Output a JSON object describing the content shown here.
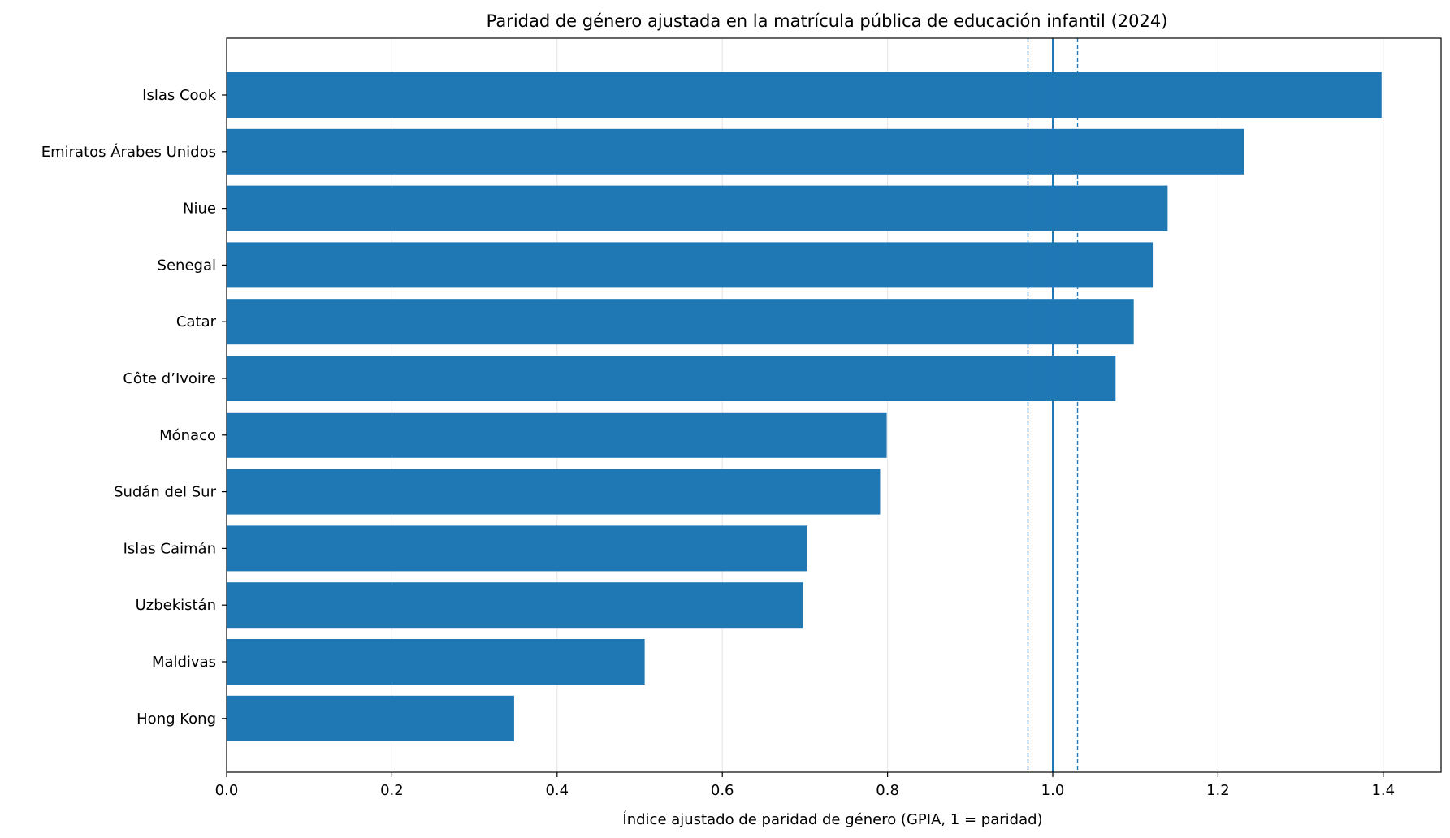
{
  "chart_data": {
    "type": "bar",
    "orientation": "horizontal",
    "title": "Paridad de género ajustada en la matrícula pública de educación infantil (2024)",
    "xlabel": "Índice ajustado de paridad de género (GPIA, 1 = paridad)",
    "ylabel": "",
    "xlim": [
      0,
      1.47
    ],
    "xticks": [
      0,
      0.2,
      0.4,
      0.6,
      0.8,
      1.0,
      1.2,
      1.4
    ],
    "xtick_labels": [
      "0.0",
      "0.2",
      "0.4",
      "0.6",
      "0.8",
      "1.0",
      "1.2",
      "1.4"
    ],
    "grid": "vertical",
    "categories": [
      "Islas Cook",
      "Emiratos Árabes Unidos",
      "Niue",
      "Senegal",
      "Catar",
      "Côte d’Ivoire",
      "Mónaco",
      "Sudán del Sur",
      "Islas Caimán",
      "Uzbekistán",
      "Maldivas",
      "Hong Kong"
    ],
    "values": [
      1.398,
      1.232,
      1.139,
      1.121,
      1.098,
      1.076,
      0.799,
      0.791,
      0.703,
      0.698,
      0.506,
      0.348
    ],
    "reference_lines": [
      {
        "value": 1.0,
        "style": "solid"
      },
      {
        "value": 0.97,
        "style": "dashed"
      },
      {
        "value": 1.03,
        "style": "dashed"
      }
    ],
    "colors": {
      "bar": "#1f77b4",
      "reference": "#1f77b4",
      "grid": "#e5e5e5",
      "axis": "#000000"
    }
  }
}
